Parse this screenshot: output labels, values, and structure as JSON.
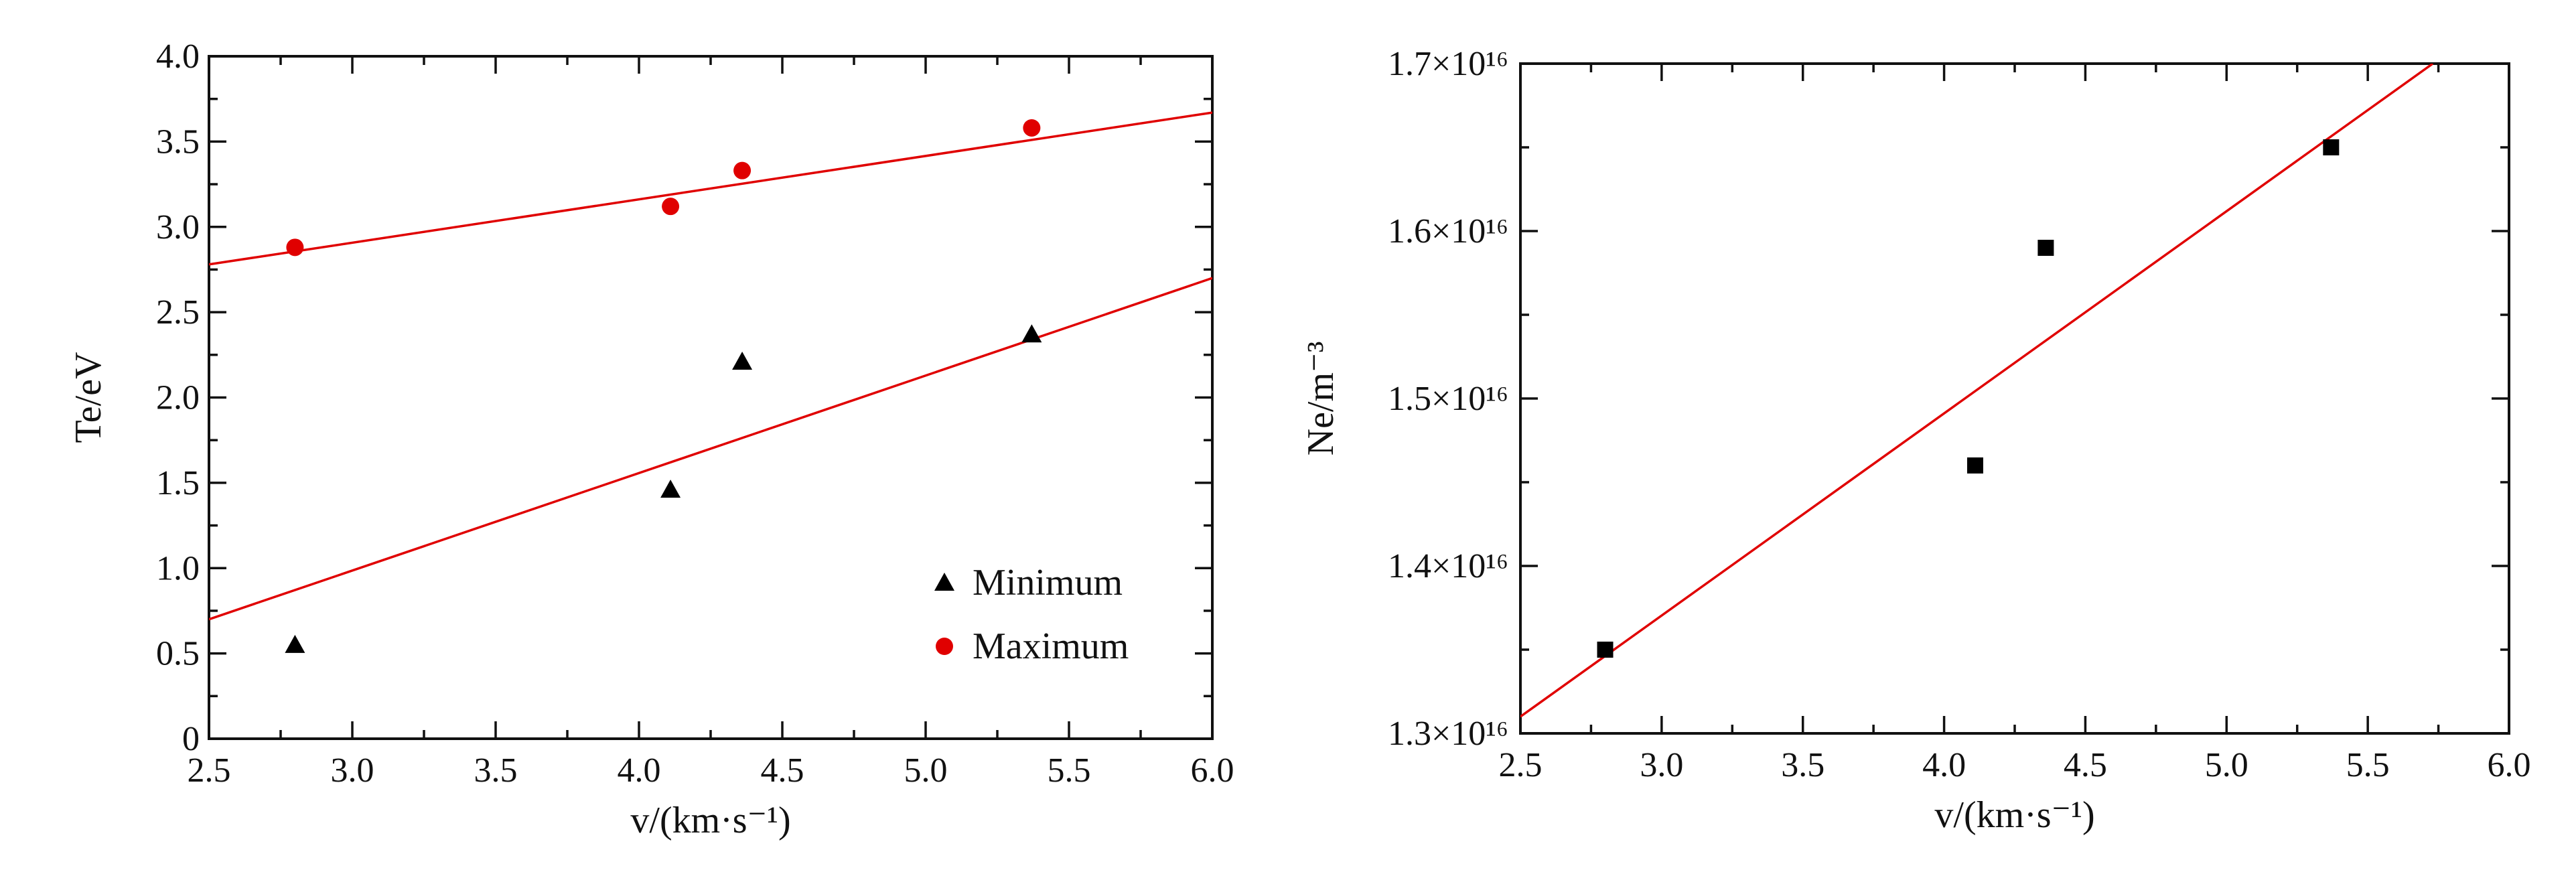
{
  "chart_data": [
    {
      "type": "scatter",
      "xlabel": "v/(km·s⁻¹)",
      "ylabel": "Te/eV",
      "xlim": [
        2.5,
        6.0
      ],
      "ylim": [
        0,
        4.0
      ],
      "xticks": [
        "2.5",
        "3.0",
        "3.5",
        "4.0",
        "4.5",
        "5.0",
        "5.5",
        "6.0"
      ],
      "yticks": [
        "0",
        "0.5",
        "1.0",
        "1.5",
        "2.0",
        "2.5",
        "3.0",
        "3.5",
        "4.0"
      ],
      "grid": false,
      "legend_position": "bottom-right",
      "series": [
        {
          "name": "Minimum",
          "marker": "triangle",
          "color": "#000000",
          "x": [
            2.8,
            4.11,
            4.36,
            5.37
          ],
          "y": [
            0.55,
            1.46,
            2.21,
            2.37
          ],
          "fit": {
            "x": [
              2.5,
              6.0
            ],
            "y": [
              0.7,
              2.7
            ],
            "color": "#e00000"
          }
        },
        {
          "name": "Maximum",
          "marker": "circle",
          "color": "#e00000",
          "x": [
            2.8,
            4.11,
            4.36,
            5.37
          ],
          "y": [
            2.88,
            3.12,
            3.33,
            3.58
          ],
          "fit": {
            "x": [
              2.5,
              6.0
            ],
            "y": [
              2.78,
              3.67
            ],
            "color": "#e00000"
          }
        }
      ]
    },
    {
      "type": "scatter",
      "xlabel": "v/(km·s⁻¹)",
      "ylabel": "Ne/m⁻³",
      "xlim": [
        2.5,
        6.0
      ],
      "ylim": [
        1.3e+16,
        1.7e+16
      ],
      "xticks": [
        "2.5",
        "3.0",
        "3.5",
        "4.0",
        "4.5",
        "5.0",
        "5.5",
        "6.0"
      ],
      "yticks": [
        "1.3×10¹⁶",
        "1.4×10¹⁶",
        "1.5×10¹⁶",
        "1.6×10¹⁶",
        "1.7×10¹⁶"
      ],
      "grid": false,
      "series": [
        {
          "marker": "square",
          "color": "#000000",
          "x": [
            2.8,
            4.11,
            4.36,
            5.37
          ],
          "y": [
            1.35e+16,
            1.46e+16,
            1.59e+16,
            1.65e+16
          ],
          "fit": {
            "x": [
              2.5,
              5.73
            ],
            "y": [
              1.31e+16,
              1.7e+16
            ],
            "color": "#e00000"
          }
        }
      ]
    }
  ]
}
